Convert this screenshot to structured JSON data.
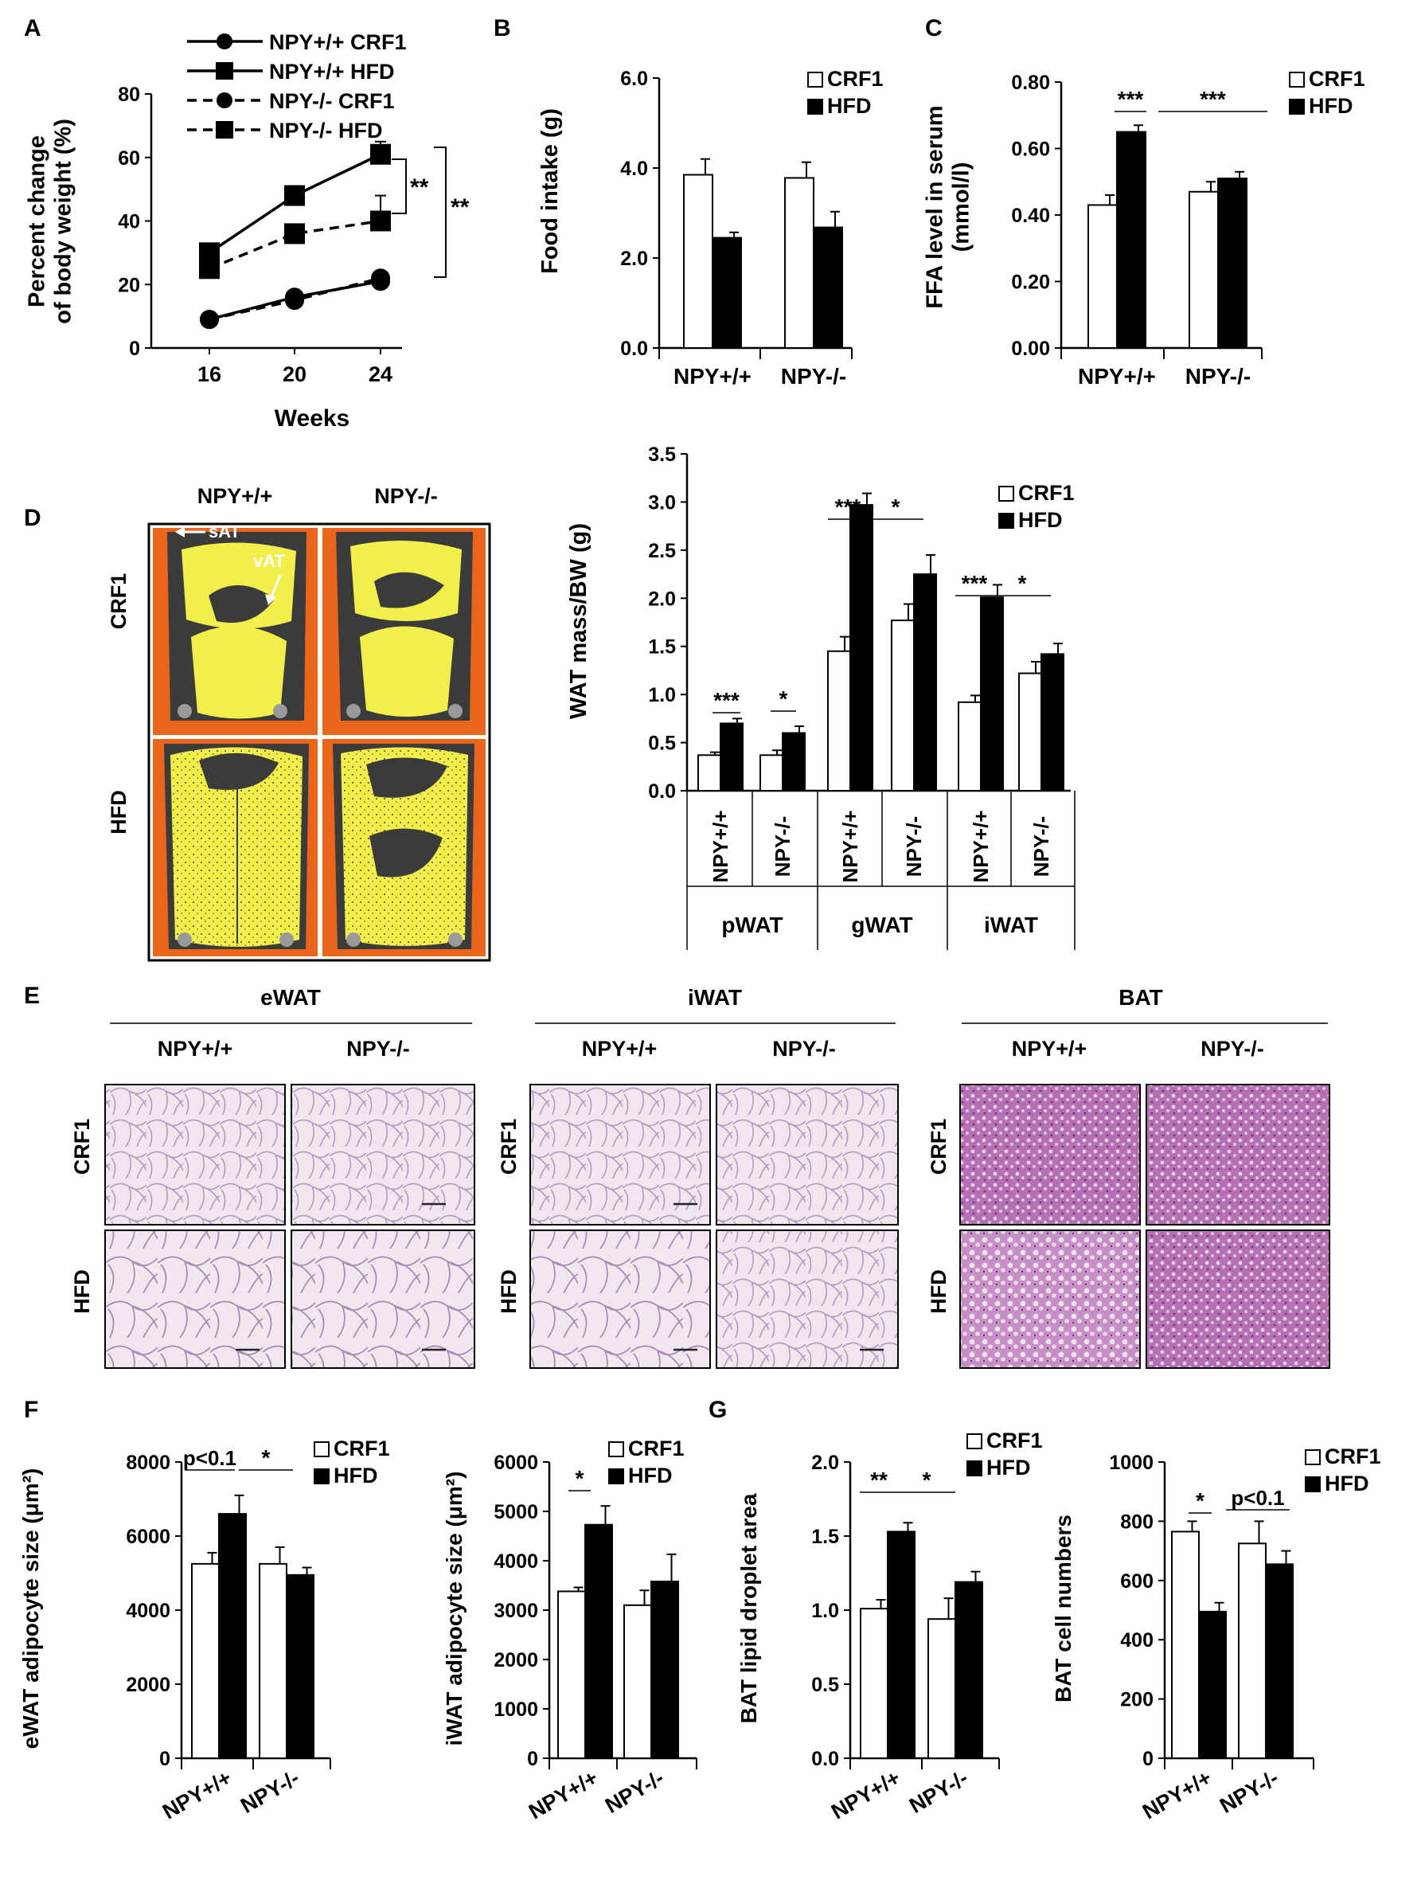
{
  "panel_letters": [
    "A",
    "B",
    "C",
    "D",
    "E",
    "F",
    "G"
  ],
  "colors": {
    "crf1_fill": "#ffffff",
    "hfd_fill": "#000000",
    "axis": "#000000",
    "mri_orange": "#e8651b",
    "mri_yellow": "#f2ee4a",
    "mri_dark": "#3a3a3a",
    "he_pale": "#ece4ee",
    "he_purple": "#9c4d9c"
  },
  "chart_data": [
    {
      "id": "A",
      "type": "line",
      "xlabel": "Weeks",
      "ylabel_lines": [
        "Percent change",
        "of body weight (%)"
      ],
      "x": [
        16,
        20,
        24
      ],
      "ylim": [
        0,
        80
      ],
      "yticks": [
        0,
        20,
        40,
        60,
        80
      ],
      "series": [
        {
          "name": "NPY+/+ CRF1",
          "marker": "circle",
          "dash": false,
          "values": [
            9,
            16,
            21
          ],
          "err": [
            1,
            1,
            2
          ]
        },
        {
          "name": "NPY+/+ HFD",
          "marker": "square",
          "dash": false,
          "values": [
            30,
            48,
            61
          ],
          "err": [
            2,
            3,
            4
          ]
        },
        {
          "name": "NPY-/- CRF1",
          "marker": "circle",
          "dash": true,
          "values": [
            9,
            15,
            22
          ],
          "err": [
            1,
            1,
            2
          ]
        },
        {
          "name": "NPY-/- HFD",
          "marker": "square",
          "dash": true,
          "values": [
            25,
            36,
            40
          ],
          "err": [
            2,
            3,
            8
          ]
        }
      ],
      "annotations": [
        "**",
        "**"
      ]
    },
    {
      "id": "B",
      "type": "bar",
      "ylabel": "Food intake (g)",
      "categories": [
        "NPY+/+",
        "NPY-/-"
      ],
      "ylim": [
        0,
        6
      ],
      "yticks": [
        "0.0",
        "2.0",
        "4.0",
        "6.0"
      ],
      "series": [
        {
          "name": "CRF1",
          "values": [
            3.85,
            3.78
          ],
          "err": [
            0.35,
            0.35
          ]
        },
        {
          "name": "HFD",
          "values": [
            2.45,
            2.68
          ],
          "err": [
            0.12,
            0.35
          ]
        }
      ]
    },
    {
      "id": "C",
      "type": "bar",
      "ylabel_lines": [
        "FFA level in serum",
        "(mmol/l)"
      ],
      "categories": [
        "NPY+/+",
        "NPY-/-"
      ],
      "ylim": [
        0,
        0.8
      ],
      "yticks": [
        "0.00",
        "0.20",
        "0.40",
        "0.60",
        "0.80"
      ],
      "series": [
        {
          "name": "CRF1",
          "values": [
            0.43,
            0.47
          ],
          "err": [
            0.03,
            0.03
          ]
        },
        {
          "name": "HFD",
          "values": [
            0.65,
            0.51
          ],
          "err": [
            0.02,
            0.02
          ]
        }
      ],
      "annotations": [
        "***",
        "***"
      ]
    },
    {
      "id": "D",
      "type": "bar",
      "ylabel": "WAT mass/BW (g)",
      "categories": [
        "NPY+/+",
        "NPY-/-",
        "NPY+/+",
        "NPY-/-",
        "NPY+/+",
        "NPY-/-"
      ],
      "groups": [
        "pWAT",
        "gWAT",
        "iWAT"
      ],
      "ylim": [
        0,
        3.5
      ],
      "yticks": [
        "0.0",
        "0.5",
        "1.0",
        "1.5",
        "2.0",
        "2.5",
        "3.0",
        "3.5"
      ],
      "series": [
        {
          "name": "CRF1",
          "values": [
            0.37,
            0.37,
            1.45,
            1.77,
            0.92,
            1.22
          ],
          "err": [
            0.03,
            0.05,
            0.15,
            0.17,
            0.07,
            0.12
          ]
        },
        {
          "name": "HFD",
          "values": [
            0.7,
            0.6,
            2.97,
            2.25,
            2.01,
            1.42
          ],
          "err": [
            0.05,
            0.07,
            0.12,
            0.2,
            0.13,
            0.11
          ]
        }
      ],
      "annotations": [
        "***",
        "*",
        "***",
        "*",
        "***",
        "*"
      ]
    },
    {
      "id": "F1",
      "type": "bar",
      "ylabel": "eWAT adipocyte size (μm²)",
      "categories": [
        "NPY+/+",
        "NPY-/-"
      ],
      "ylim": [
        0,
        8000
      ],
      "yticks": [
        "0",
        "2000",
        "4000",
        "6000",
        "8000"
      ],
      "series": [
        {
          "name": "CRF1",
          "values": [
            5250,
            5250
          ],
          "err": [
            300,
            450
          ]
        },
        {
          "name": "HFD",
          "values": [
            6600,
            4950
          ],
          "err": [
            500,
            200
          ]
        }
      ],
      "annotations": [
        "p<0.1",
        "*"
      ]
    },
    {
      "id": "F2",
      "type": "bar",
      "ylabel": "iWAT adipocyte size (μm²)",
      "categories": [
        "NPY+/+",
        "NPY-/-"
      ],
      "ylim": [
        0,
        6000
      ],
      "yticks": [
        "0",
        "1000",
        "2000",
        "3000",
        "4000",
        "5000",
        "6000"
      ],
      "series": [
        {
          "name": "CRF1",
          "values": [
            3380,
            3100
          ],
          "err": [
            80,
            300
          ]
        },
        {
          "name": "HFD",
          "values": [
            4730,
            3580
          ],
          "err": [
            380,
            550
          ]
        }
      ],
      "annotations": [
        "*"
      ]
    },
    {
      "id": "G1",
      "type": "bar",
      "ylabel": "BAT lipid droplet area",
      "categories": [
        "NPY+/+",
        "NPY-/-"
      ],
      "ylim": [
        0,
        2.0
      ],
      "yticks": [
        "0.0",
        "0.5",
        "1.0",
        "1.5",
        "2.0"
      ],
      "series": [
        {
          "name": "CRF1",
          "values": [
            1.01,
            0.94
          ],
          "err": [
            0.06,
            0.14
          ]
        },
        {
          "name": "HFD",
          "values": [
            1.53,
            1.19
          ],
          "err": [
            0.06,
            0.07
          ]
        }
      ],
      "annotations": [
        "**",
        "*"
      ]
    },
    {
      "id": "G2",
      "type": "bar",
      "ylabel": "BAT cell numbers",
      "categories": [
        "NPY+/+",
        "NPY-/-"
      ],
      "ylim": [
        0,
        1000
      ],
      "yticks": [
        "0",
        "200",
        "400",
        "600",
        "800",
        "1000"
      ],
      "series": [
        {
          "name": "CRF1",
          "values": [
            765,
            725
          ],
          "err": [
            35,
            75
          ]
        },
        {
          "name": "HFD",
          "values": [
            495,
            655
          ],
          "err": [
            30,
            45
          ]
        }
      ],
      "annotations": [
        "*",
        "p<0.1"
      ]
    }
  ],
  "panel_D_images": {
    "columns": [
      "NPY+/+",
      "NPY-/-"
    ],
    "rows": [
      "CRF1",
      "HFD"
    ],
    "labels": [
      "sAT",
      "vAT"
    ]
  },
  "panel_E_images": {
    "tissues": [
      "eWAT",
      "iWAT",
      "BAT"
    ],
    "columns": [
      "NPY+/+",
      "NPY-/-"
    ],
    "rows": [
      "CRF1",
      "HFD"
    ]
  }
}
